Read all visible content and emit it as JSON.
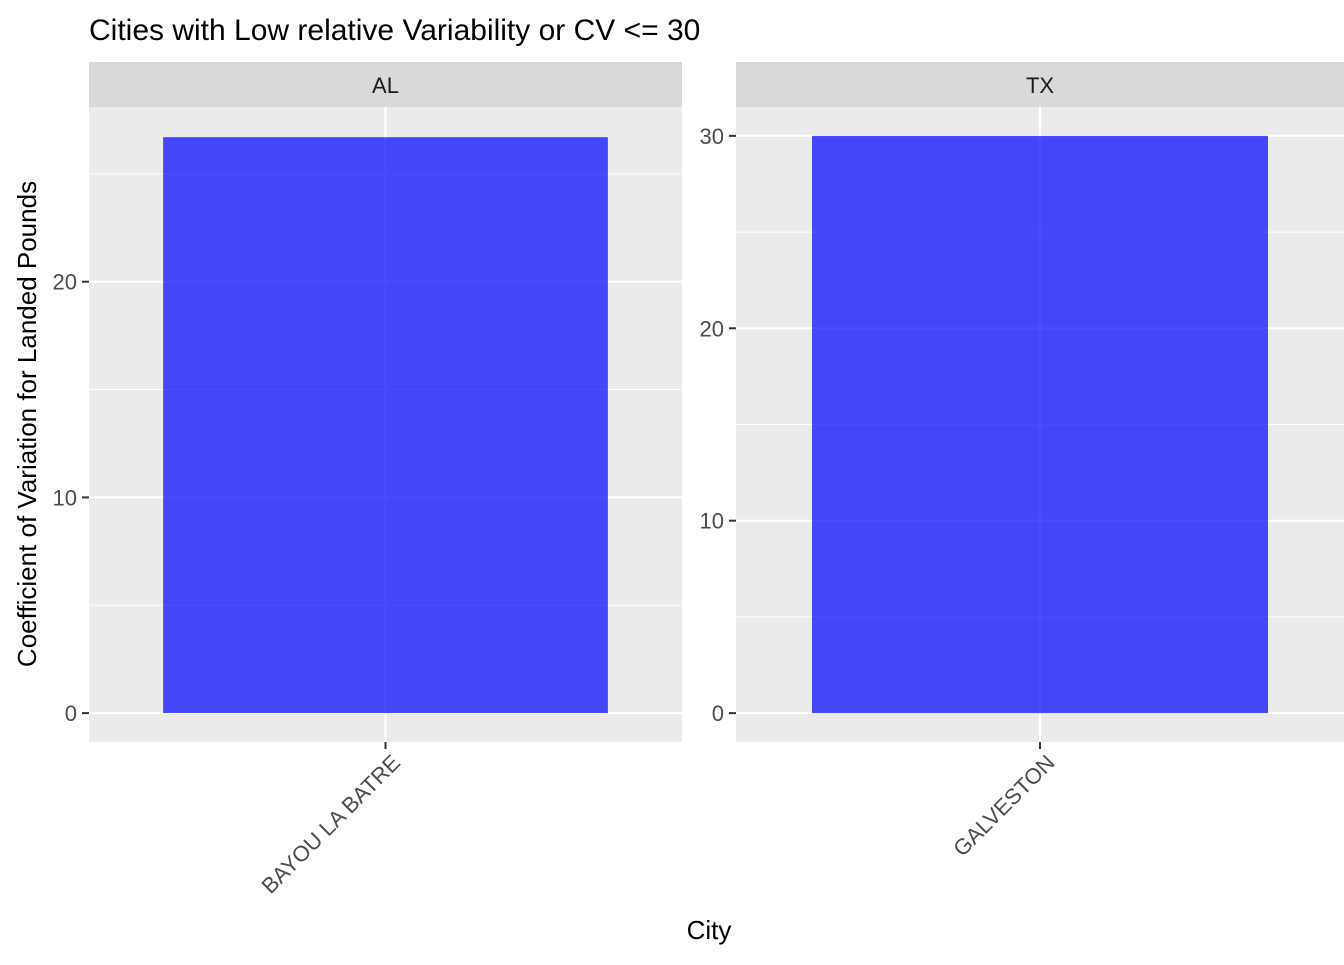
{
  "chart_data": {
    "type": "bar",
    "title": "Cities with Low relative Variability or CV <= 30",
    "xlabel": "City",
    "ylabel": "Coefficient of Variation for Landed Pounds",
    "grid": true,
    "legend": "none",
    "bar_color": "#0000FF",
    "bar_opacity": 0.7,
    "panel_background": "#EBEBEB",
    "strip_background": "#D9D9D9",
    "facets": [
      {
        "strip_label": "AL",
        "categories": [
          "BAYOU LA BATRE"
        ],
        "values": [
          26.7
        ],
        "ylim": [
          -1.34,
          28.1
        ],
        "yticks": [
          0,
          10,
          20
        ]
      },
      {
        "strip_label": "TX",
        "categories": [
          "GALVESTON"
        ],
        "values": [
          30.0
        ],
        "ylim": [
          -1.5,
          31.5
        ],
        "yticks": [
          0,
          10,
          20,
          30
        ]
      }
    ]
  }
}
